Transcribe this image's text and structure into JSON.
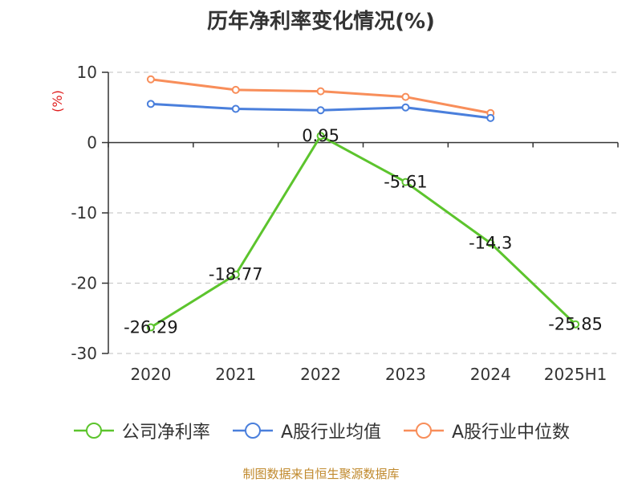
{
  "title": "历年净利率变化情况(%)",
  "source_note": "制图数据来自恒生聚源数据库",
  "chart_data": {
    "type": "line",
    "title": "历年净利率变化情况(%)",
    "ylabel": "(%)",
    "ylabel_color": "#e02020",
    "categories": [
      "2020",
      "2021",
      "2022",
      "2023",
      "2024",
      "2025H1"
    ],
    "ylim": [
      -30,
      10
    ],
    "yticks": [
      "10",
      "0",
      "-10",
      "-20",
      "-30"
    ],
    "grid": true,
    "legend_position": "bottom",
    "series": [
      {
        "name": "公司净利率",
        "color": "#5cc42d",
        "values": [
          -26.29,
          -18.77,
          0.95,
          -5.61,
          -14.3,
          -25.85
        ],
        "labels": [
          "-26.29",
          "-18.77",
          "0.95",
          "-5.61",
          "-14.3",
          "-25.85"
        ]
      },
      {
        "name": "A股行业均值",
        "color": "#4a7fdc",
        "values": [
          5.5,
          4.8,
          4.6,
          5.0,
          3.5,
          null
        ]
      },
      {
        "name": "A股行业中位数",
        "color": "#f88e5a",
        "values": [
          9.0,
          7.5,
          7.3,
          6.5,
          4.2,
          null
        ]
      }
    ]
  }
}
